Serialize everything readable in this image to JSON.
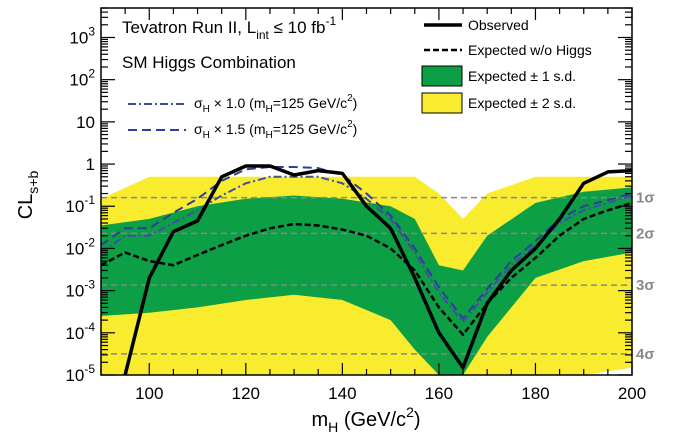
{
  "chart_data": {
    "type": "line",
    "title": "Tevatron Run II, L",
    "title_sub": "int",
    "title_rest": " ≤ 10 fb",
    "title_sup": "-1",
    "subtitle": "SM Higgs Combination",
    "xlabel": "m",
    "xlabel_sub": "H",
    "xlabel_rest": " (GeV/c",
    "xlabel_sup": "2",
    "xlabel_end": ")",
    "ylabel": "CL",
    "ylabel_sub": "s+b",
    "xlim": [
      90,
      200
    ],
    "ylim": [
      1e-05,
      5000
    ],
    "y_scale": "log",
    "x_ticks": [
      100,
      120,
      140,
      160,
      180,
      200
    ],
    "x_tick_labels": [
      "100",
      "120",
      "140",
      "160",
      "180",
      "200"
    ],
    "y_ticks": [
      1e-05,
      0.0001,
      0.001,
      0.01,
      0.1,
      1,
      10,
      100,
      1000
    ],
    "y_tick_labels": [
      {
        "base": "10",
        "exp": "-5"
      },
      {
        "base": "10",
        "exp": "-4"
      },
      {
        "base": "10",
        "exp": "-3"
      },
      {
        "base": "10",
        "exp": "-2"
      },
      {
        "base": "10",
        "exp": "-1"
      },
      {
        "base": "1",
        "exp": ""
      },
      {
        "base": "10",
        "exp": ""
      },
      {
        "base": "10",
        "exp": "2"
      },
      {
        "base": "10",
        "exp": "3"
      }
    ],
    "sigma_lines": [
      {
        "label": "1σ",
        "y": 0.16
      },
      {
        "label": "2σ",
        "y": 0.0228
      },
      {
        "label": "3σ",
        "y": 0.00135
      },
      {
        "label": "4σ",
        "y": 3.17e-05
      }
    ],
    "band_2sd": {
      "x": [
        90,
        100,
        110,
        120,
        130,
        140,
        150,
        155,
        160,
        165,
        170,
        180,
        190,
        200
      ],
      "low": [
        1e-05,
        1e-05,
        1e-05,
        1e-05,
        1e-05,
        1e-05,
        1e-05,
        1e-05,
        1e-05,
        1e-05,
        1e-05,
        1e-05,
        1e-05,
        1.5e-05
      ],
      "high": [
        0.15,
        0.5,
        0.5,
        0.5,
        0.5,
        0.5,
        0.5,
        0.5,
        0.2,
        0.05,
        0.2,
        0.5,
        0.5,
        0.5
      ]
    },
    "band_1sd": {
      "x": [
        90,
        100,
        110,
        120,
        130,
        140,
        150,
        155,
        160,
        165,
        170,
        180,
        190,
        200
      ],
      "low": [
        0.00025,
        0.0003,
        0.0004,
        0.0006,
        0.0008,
        0.0006,
        0.0002,
        4e-05,
        1e-05,
        1e-05,
        8e-05,
        0.002,
        0.005,
        0.008
      ],
      "high": [
        0.035,
        0.05,
        0.1,
        0.15,
        0.18,
        0.15,
        0.1,
        0.05,
        0.004,
        0.003,
        0.02,
        0.12,
        0.22,
        0.28
      ]
    },
    "series": [
      {
        "name": "Observed",
        "color": "#000000",
        "style": "solid",
        "x": [
          90,
          95,
          100,
          105,
          110,
          115,
          120,
          125,
          130,
          135,
          140,
          145,
          150,
          155,
          160,
          165,
          170,
          175,
          180,
          185,
          190,
          195,
          200
        ],
        "y": [
          2e-08,
          1e-05,
          0.002,
          0.025,
          0.045,
          0.5,
          0.9,
          0.9,
          0.55,
          0.7,
          0.6,
          0.1,
          0.03,
          0.002,
          0.0001,
          1.5e-05,
          0.0005,
          0.003,
          0.01,
          0.05,
          0.35,
          0.65,
          0.7
        ]
      },
      {
        "name": "Expected w/o Higgs",
        "color": "#000000",
        "style": "dashed",
        "x": [
          90,
          95,
          100,
          105,
          110,
          115,
          120,
          125,
          130,
          135,
          140,
          145,
          150,
          155,
          160,
          165,
          170,
          175,
          180,
          185,
          190,
          195,
          200
        ],
        "y": [
          0.004,
          0.008,
          0.005,
          0.004,
          0.007,
          0.012,
          0.02,
          0.03,
          0.038,
          0.035,
          0.028,
          0.02,
          0.01,
          0.003,
          0.0004,
          9e-05,
          0.0005,
          0.002,
          0.006,
          0.02,
          0.05,
          0.08,
          0.12
        ]
      }
    ],
    "signal_curves": [
      {
        "label_pre": "σ",
        "label_sub": "H",
        "label_mid": " × 1.0 (m",
        "label_sub2": "H",
        "label_rest": "=125 GeV/c",
        "label_sup": "2",
        "label_end": ")",
        "color": "#3f4ea6",
        "style": "dashdot",
        "x": [
          90,
          95,
          100,
          105,
          110,
          115,
          120,
          125,
          130,
          135,
          140,
          145,
          150,
          155,
          160,
          165,
          170,
          175,
          180,
          185,
          190,
          195,
          200
        ],
        "y": [
          0.008,
          0.02,
          0.02,
          0.04,
          0.08,
          0.18,
          0.35,
          0.5,
          0.5,
          0.5,
          0.35,
          0.15,
          0.05,
          0.008,
          0.0009,
          0.00018,
          0.0009,
          0.004,
          0.012,
          0.04,
          0.08,
          0.12,
          0.18
        ]
      },
      {
        "label_pre": "σ",
        "label_sub": "H",
        "label_mid": " × 1.5 (m",
        "label_sub2": "H",
        "label_rest": "=125 GeV/c",
        "label_sup": "2",
        "label_end": ")",
        "color": "#2f3f96",
        "style": "dashed",
        "x": [
          90,
          95,
          100,
          105,
          110,
          115,
          120,
          125,
          130,
          135,
          140,
          145,
          150,
          155,
          160,
          165,
          170,
          175,
          180,
          185,
          190,
          195,
          200
        ],
        "y": [
          0.012,
          0.03,
          0.03,
          0.07,
          0.15,
          0.4,
          0.75,
          0.85,
          0.85,
          0.8,
          0.55,
          0.2,
          0.06,
          0.01,
          0.0012,
          0.00022,
          0.0011,
          0.005,
          0.015,
          0.05,
          0.1,
          0.14,
          0.2
        ]
      }
    ],
    "legend": [
      {
        "label": "Observed",
        "kind": "line-solid",
        "color": "#000000"
      },
      {
        "label": "Expected w/o Higgs",
        "kind": "line-dashed",
        "color": "#000000"
      },
      {
        "label": "Expected ± 1 s.d.",
        "kind": "box",
        "color": "#0c9f45"
      },
      {
        "label": "Expected ± 2 s.d.",
        "kind": "box",
        "color": "#f9ec2f"
      }
    ],
    "legend_position": "top-right",
    "colors": {
      "band_1sd": "#0c9f45",
      "band_2sd": "#f9ec2f",
      "sigma_line": "#888888"
    }
  }
}
